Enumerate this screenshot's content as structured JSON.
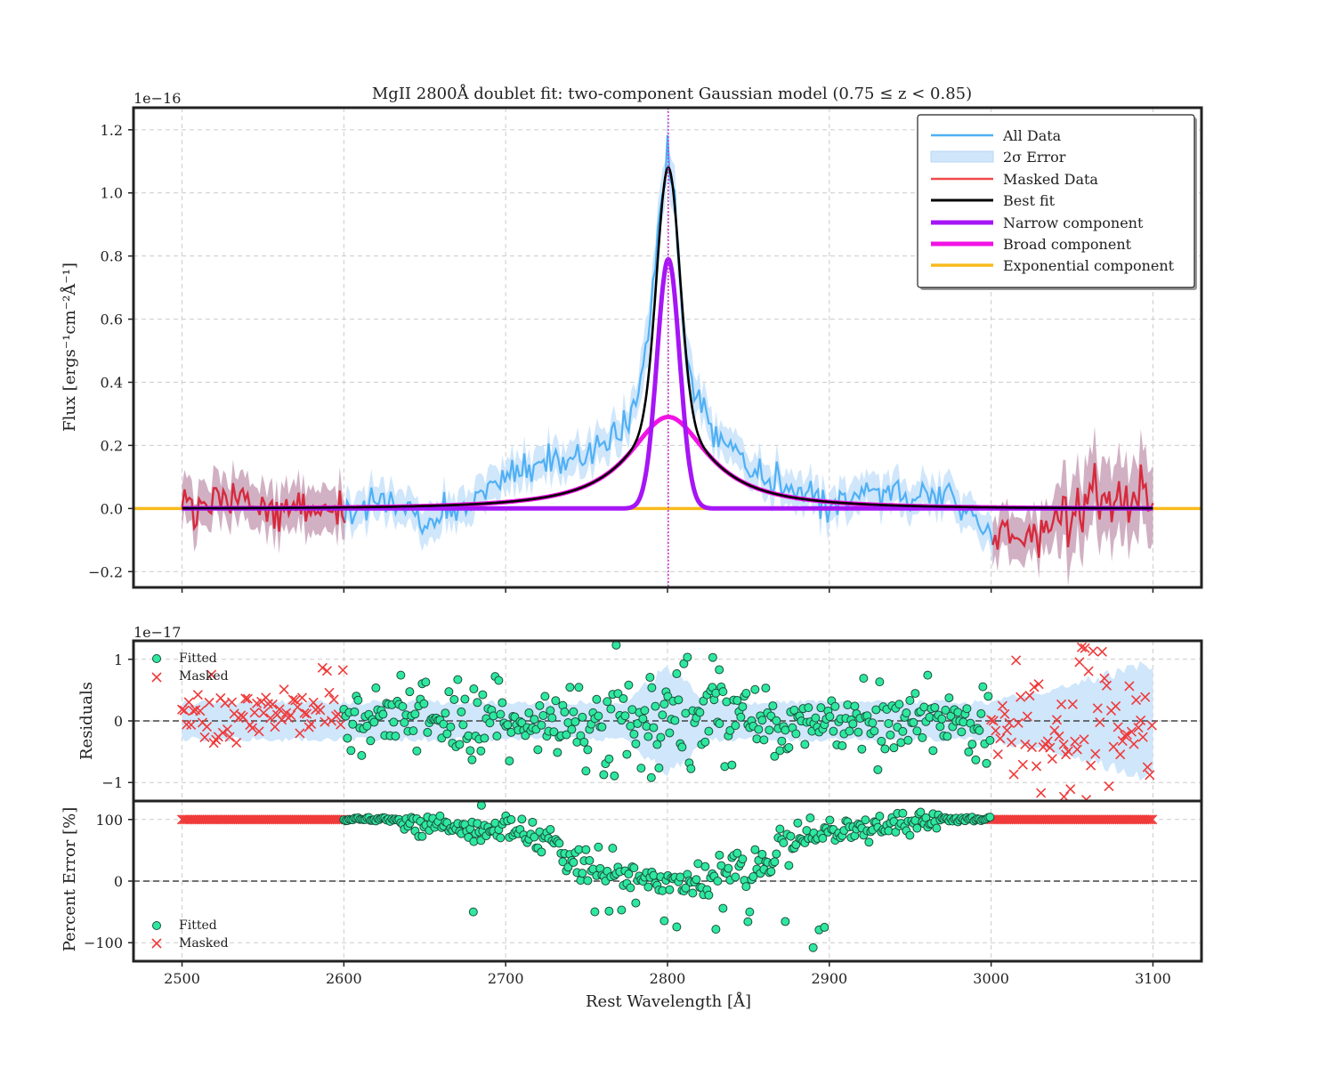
{
  "figure": {
    "title": "MgII 2800Å doublet fit: two-component Gaussian model (0.75 ≤ z < 0.85)",
    "xlabel": "Rest Wavelength [Å]",
    "colors": {
      "all_data": "#4fb0f5",
      "error_band": "#cfe6fb",
      "masked_data": "#d62a3c",
      "masked_band": "#c9a2b8",
      "best_fit": "#000000",
      "narrow": "#a615f5",
      "broad": "#f212e4",
      "exponential": "#f9bb1c",
      "fitted_points": "#2ee8a0",
      "masked_points": "#f03a3a",
      "center_line": "#cc33cc"
    }
  },
  "panels": {
    "spectrum": {
      "ylabel": "Flux [ergs⁻¹cm⁻²Å⁻¹]",
      "offset_text": "1e−16",
      "yticks": [
        "−0.2",
        "0.0",
        "0.2",
        "0.4",
        "0.6",
        "0.8",
        "1.0",
        "1.2"
      ],
      "legend": [
        {
          "label": "All Data"
        },
        {
          "label": "2σ Error"
        },
        {
          "label": "Masked Data"
        },
        {
          "label": "Best fit"
        },
        {
          "label": "Narrow component"
        },
        {
          "label": "Broad component"
        },
        {
          "label": "Exponential component"
        }
      ]
    },
    "residuals": {
      "ylabel": "Residuals",
      "offset_text": "1e−17",
      "yticks": [
        "−1",
        "0",
        "1"
      ],
      "legend": [
        {
          "label": "Fitted"
        },
        {
          "label": "Masked"
        }
      ]
    },
    "percent": {
      "ylabel": "Percent Error [%]",
      "yticks": [
        "−100",
        "0",
        "100"
      ],
      "legend": [
        {
          "label": "Fitted"
        },
        {
          "label": "Masked"
        }
      ]
    }
  },
  "xticks": [
    "2500",
    "2600",
    "2700",
    "2800",
    "2900",
    "3000",
    "3100"
  ],
  "chart_data": [
    {
      "type": "line",
      "panel": "spectrum",
      "title": "MgII 2800Å doublet fit: two-component Gaussian model (0.75 ≤ z < 0.85)",
      "xlabel": "",
      "ylabel": "Flux [ergs⁻¹cm⁻²Å⁻¹]",
      "y_scale_factor": "1e-16",
      "xlim": [
        2470,
        3130
      ],
      "ylim": [
        -0.25,
        1.27
      ],
      "grid": true,
      "legend_position": "top-right",
      "center_line_x": 2800.5,
      "fit_range": [
        2600,
        3000
      ],
      "model": {
        "narrow": {
          "amplitude": 0.79,
          "center": 2800.5,
          "sigma": 7.0
        },
        "broad": {
          "amplitude": 0.29,
          "center": 2800.5,
          "hwhm": 30.0,
          "profile": "lorentzian"
        },
        "exponential": {
          "level": 0.0
        }
      },
      "data_x": [
        2500,
        2525,
        2550,
        2575,
        2600,
        2625,
        2650,
        2675,
        2700,
        2725,
        2750,
        2760,
        2770,
        2780,
        2785,
        2790,
        2795,
        2800,
        2805,
        2810,
        2815,
        2820,
        2830,
        2840,
        2850,
        2875,
        2900,
        2925,
        2950,
        2975,
        3000,
        3025,
        3050,
        3075,
        3100
      ],
      "data_y": [
        0.0,
        0.01,
        0.02,
        0.0,
        -0.02,
        0.05,
        -0.05,
        0.02,
        0.1,
        0.13,
        0.17,
        0.2,
        0.24,
        0.32,
        0.42,
        0.62,
        0.96,
        1.12,
        0.95,
        0.55,
        0.4,
        0.33,
        0.24,
        0.18,
        0.14,
        0.06,
        0.02,
        0.05,
        0.06,
        0.04,
        -0.08,
        -0.08,
        0.0,
        0.02,
        0.05
      ]
    },
    {
      "type": "scatter",
      "panel": "residuals",
      "ylabel": "Residuals",
      "y_scale_factor": "1e-17",
      "xlim": [
        2470,
        3130
      ],
      "ylim": [
        -1.3,
        1.3
      ],
      "grid": true,
      "legend_position": "top-left",
      "series": [
        {
          "name": "Fitted",
          "x_range": [
            2600,
            3000
          ],
          "spread": 0.35
        },
        {
          "name": "Masked",
          "x_ranges": [
            [
              2500,
              2600
            ],
            [
              3000,
              3100
            ]
          ],
          "spread": 0.4
        }
      ],
      "error_band_halfwidth": [
        0.3,
        0.9
      ],
      "notable_points": [
        [
          2828,
          1.03
        ],
        [
          2832,
          0.83
        ],
        [
          2790,
          -0.92
        ],
        [
          3058,
          1.18
        ],
        [
          3045,
          -1.23
        ]
      ]
    },
    {
      "type": "scatter",
      "panel": "percent",
      "ylabel": "Percent Error [%]",
      "xlim": [
        2470,
        3130
      ],
      "ylim": [
        -130,
        130
      ],
      "grid": true,
      "legend_position": "bottom-left",
      "series": [
        {
          "name": "Fitted",
          "x_range": [
            2600,
            3000
          ]
        },
        {
          "name": "Masked",
          "x_ranges": [
            [
              2500,
              2600
            ],
            [
              3000,
              3100
            ]
          ],
          "value": 100
        }
      ],
      "notable_points": [
        [
          2890,
          -108
        ],
        [
          2897,
          -75
        ],
        [
          2685,
          123
        ],
        [
          2680,
          -50
        ]
      ]
    }
  ]
}
